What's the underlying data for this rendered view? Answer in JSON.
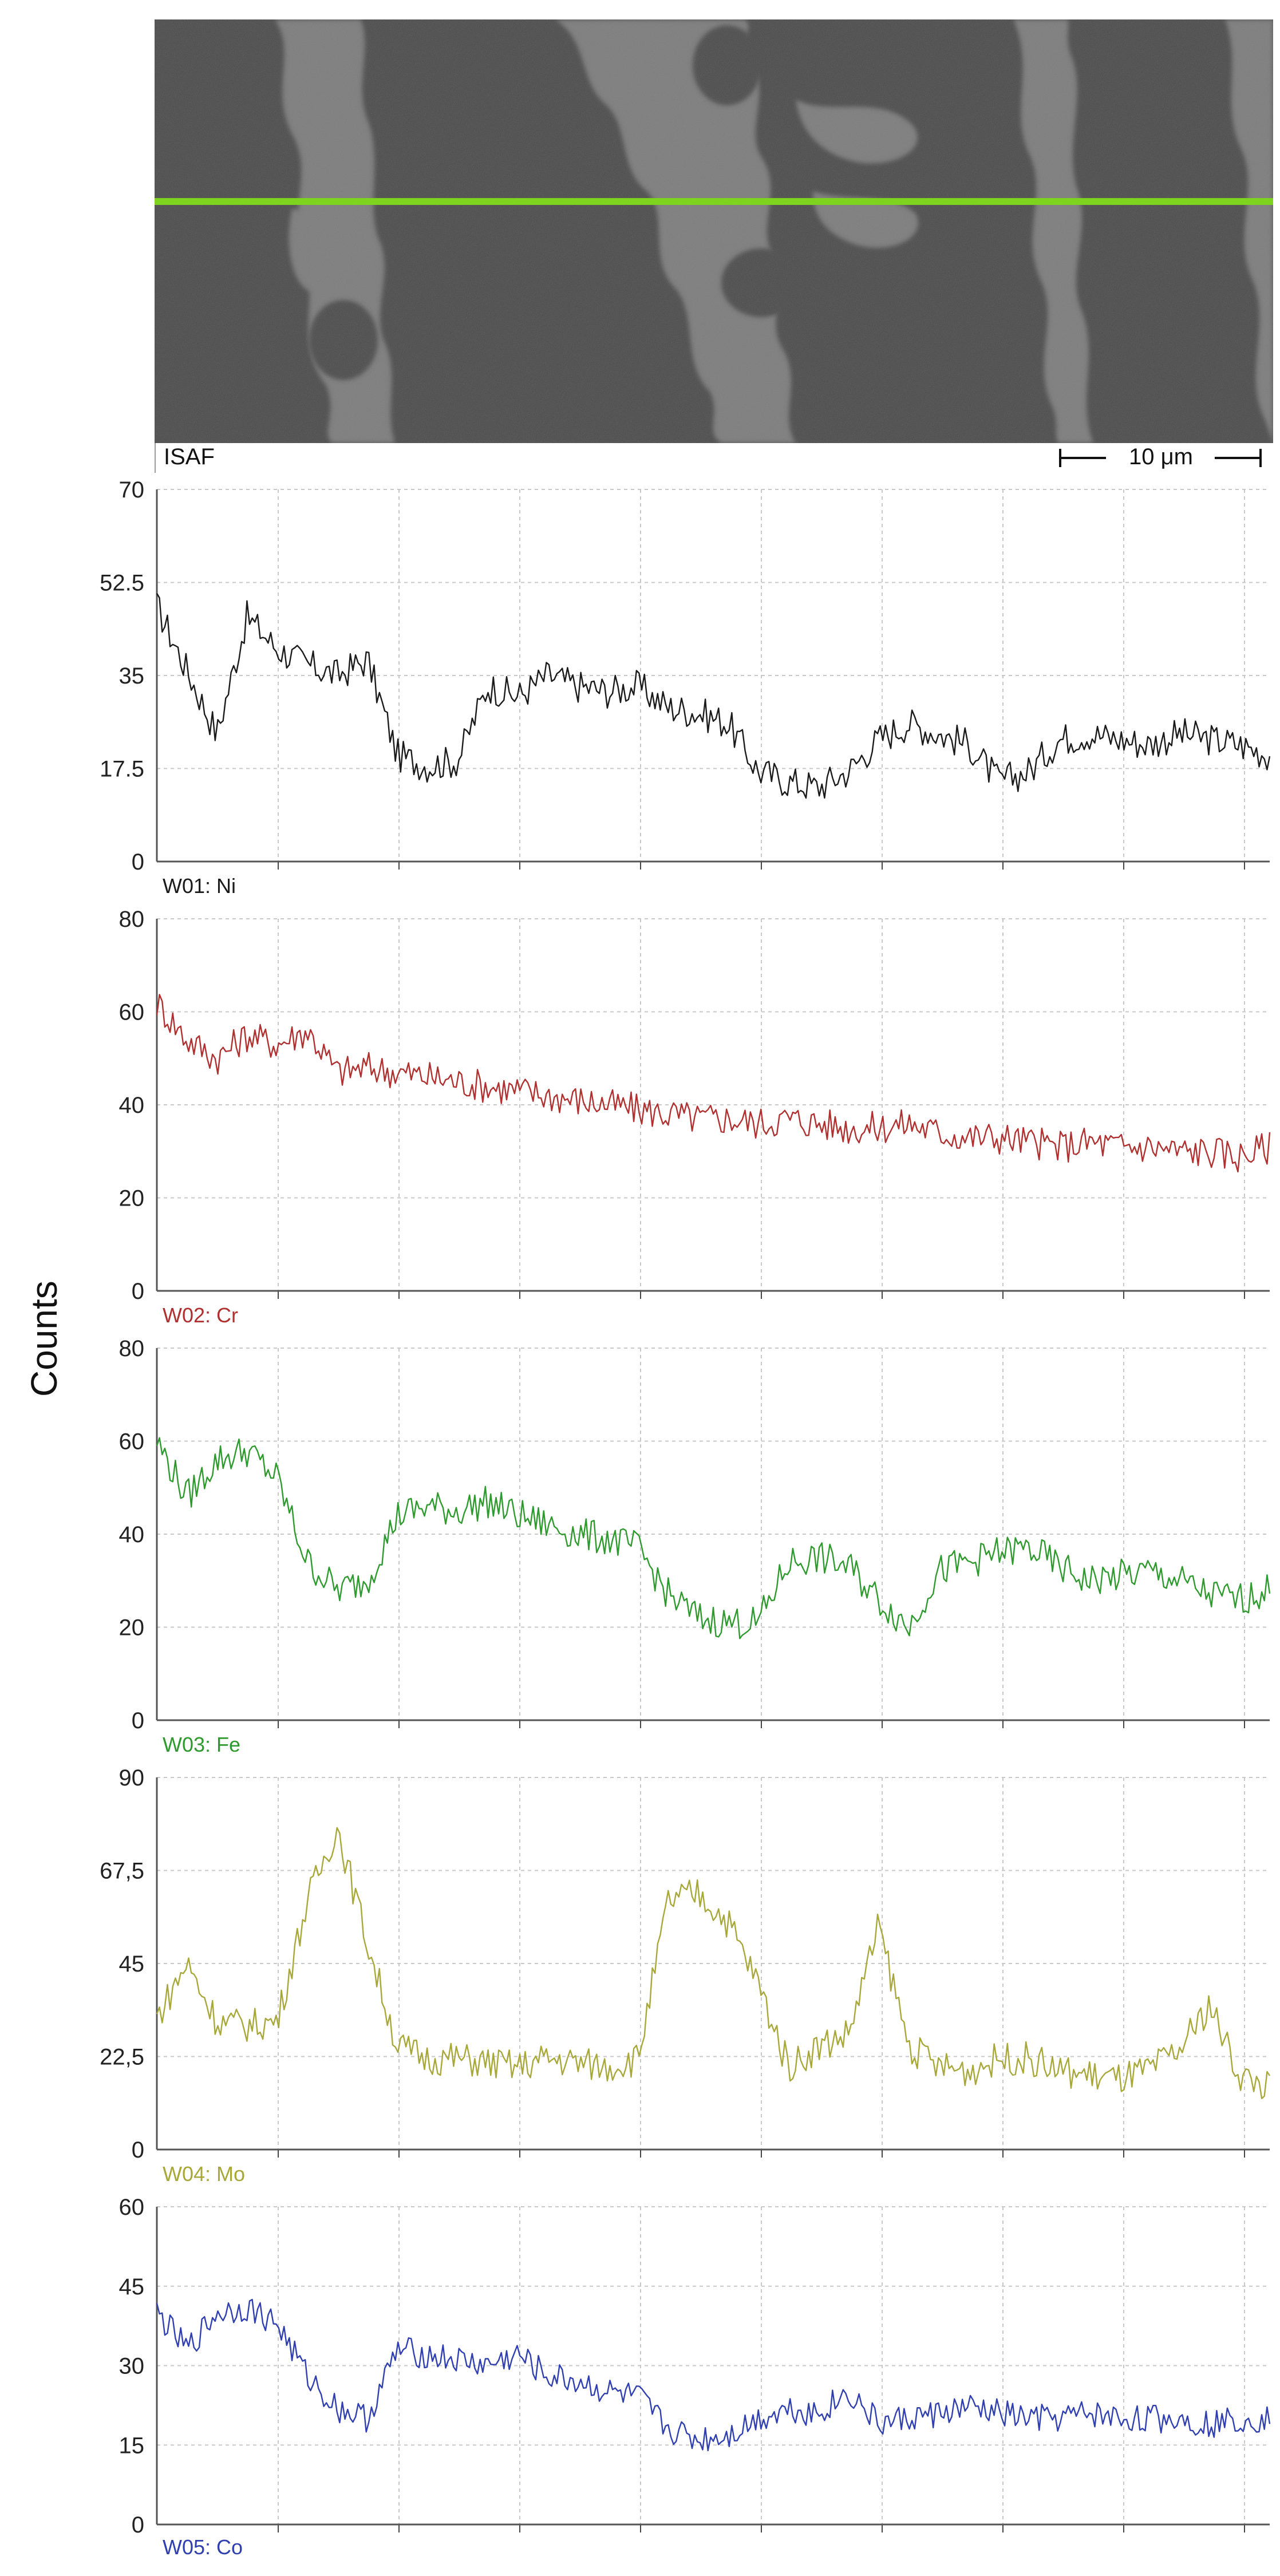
{
  "image": {
    "label": "ISAF",
    "scale_bar": "10 μm",
    "line_color": "#7ed321"
  },
  "ylabel": "Counts",
  "chart_data": [
    {
      "type": "line",
      "series_label": "W01: Ni",
      "color": "#1a1a1a",
      "ylim": [
        0,
        70
      ],
      "yticks": [
        "0",
        "17.5",
        "35",
        "52.5",
        "70"
      ],
      "grid": true,
      "x": [
        0,
        0.25,
        0.5,
        0.75,
        1,
        1.25,
        1.5,
        1.75,
        2,
        2.25,
        2.5,
        2.75,
        3,
        3.25,
        3.5,
        3.75,
        4,
        4.25,
        4.5,
        4.75,
        5,
        5.25,
        5.5,
        5.75,
        6,
        6.25,
        6.5,
        6.75,
        7,
        7.25,
        7.5,
        7.75,
        8,
        8.25,
        8.5,
        8.75,
        9,
        9.25
      ],
      "values": [
        48,
        36,
        24,
        46,
        40,
        37,
        35,
        38,
        20,
        18,
        19,
        33,
        31,
        35,
        33,
        32,
        33,
        29,
        28,
        26,
        17,
        15,
        14,
        17,
        23,
        26,
        24,
        22,
        15,
        17,
        23,
        24,
        23,
        22,
        24,
        23,
        22,
        20
      ]
    },
    {
      "type": "line",
      "series_label": "W02: Cr",
      "color": "#b03030",
      "ylim": [
        0,
        80
      ],
      "yticks": [
        "0",
        "20",
        "40",
        "60",
        "80"
      ],
      "grid": true,
      "x": [
        0,
        0.25,
        0.5,
        0.75,
        1,
        1.25,
        1.5,
        1.75,
        2,
        2.25,
        2.5,
        2.75,
        3,
        3.25,
        3.5,
        3.75,
        4,
        4.25,
        4.5,
        4.75,
        5,
        5.25,
        5.5,
        5.75,
        6,
        6.25,
        6.5,
        6.75,
        7,
        7.25,
        7.5,
        7.75,
        8,
        8.25,
        8.5,
        8.75,
        9,
        9.25
      ],
      "values": [
        62,
        54,
        50,
        55,
        53,
        56,
        47,
        48,
        47,
        46,
        45,
        44,
        43,
        42,
        41,
        40,
        39,
        38,
        37,
        37,
        36,
        37,
        36,
        35,
        35,
        36,
        34,
        33,
        33,
        32,
        31,
        32,
        31,
        31,
        30,
        30,
        29,
        31
      ]
    },
    {
      "type": "line",
      "series_label": "W03: Fe",
      "color": "#2e9a2e",
      "ylim": [
        0,
        80
      ],
      "yticks": [
        "0",
        "20",
        "40",
        "60",
        "80"
      ],
      "grid": true,
      "x": [
        0,
        0.25,
        0.5,
        0.75,
        1,
        1.25,
        1.5,
        1.75,
        2,
        2.25,
        2.5,
        2.75,
        3,
        3.25,
        3.5,
        3.75,
        4,
        4.25,
        4.5,
        4.75,
        5,
        5.25,
        5.5,
        5.75,
        6,
        6.25,
        6.5,
        6.75,
        7,
        7.25,
        7.5,
        7.75,
        8,
        8.25,
        8.5,
        8.75,
        9,
        9.25
      ],
      "values": [
        60,
        48,
        56,
        58,
        52,
        34,
        28,
        30,
        44,
        46,
        45,
        47,
        44,
        42,
        40,
        39,
        37,
        27,
        22,
        21,
        21,
        34,
        35,
        33,
        26,
        20,
        32,
        34,
        36,
        37,
        33,
        30,
        31,
        32,
        30,
        27,
        26,
        28
      ]
    },
    {
      "type": "line",
      "series_label": "W04: Mo",
      "color": "#a8a83a",
      "ylim": [
        0,
        90
      ],
      "yticks": [
        "0",
        "22,5",
        "45",
        "67,5",
        "90"
      ],
      "grid": true,
      "x": [
        0,
        0.25,
        0.5,
        0.75,
        1,
        1.25,
        1.5,
        1.75,
        2,
        2.25,
        2.5,
        2.75,
        3,
        3.25,
        3.5,
        3.75,
        4,
        4.25,
        4.5,
        4.75,
        5,
        5.25,
        5.5,
        5.75,
        6,
        6.25,
        6.5,
        6.75,
        7,
        7.25,
        7.5,
        7.75,
        8,
        8.25,
        8.5,
        8.75,
        9,
        9.25
      ],
      "values": [
        32,
        45,
        31,
        30,
        31,
        60,
        78,
        50,
        25,
        22,
        22,
        21,
        20,
        22,
        21,
        20,
        22,
        60,
        62,
        55,
        40,
        20,
        25,
        28,
        54,
        25,
        20,
        19,
        22,
        22,
        19,
        18,
        17,
        19,
        24,
        35,
        18,
        15
      ]
    },
    {
      "type": "line",
      "series_label": "W05: Co",
      "color": "#2f3fb0",
      "ylim": [
        0,
        60
      ],
      "yticks": [
        "0",
        "15",
        "30",
        "45",
        "60"
      ],
      "grid": true,
      "x": [
        0,
        0.25,
        0.5,
        0.75,
        1,
        1.25,
        1.5,
        1.75,
        2,
        2.25,
        2.5,
        2.75,
        3,
        3.25,
        3.5,
        3.75,
        4,
        4.25,
        4.5,
        4.75,
        5,
        5.25,
        5.5,
        5.75,
        6,
        6.25,
        6.5,
        6.75,
        7,
        7.25,
        7.5,
        7.75,
        8,
        8.25,
        8.5,
        8.75,
        9,
        9.25
      ],
      "values": [
        40,
        33,
        40,
        41,
        38,
        28,
        22,
        20,
        33,
        32,
        31,
        30,
        32,
        28,
        27,
        25,
        24,
        18,
        16,
        17,
        20,
        22,
        21,
        25,
        19,
        20,
        21,
        22,
        21,
        20,
        20,
        21,
        20,
        20,
        20,
        19,
        20,
        20
      ]
    }
  ]
}
